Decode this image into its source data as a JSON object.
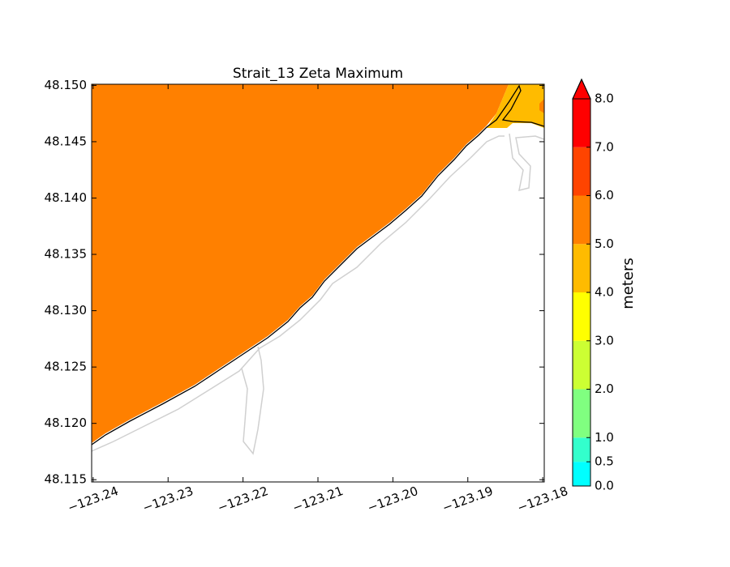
{
  "chart_data": {
    "type": "contour",
    "title": "Strait_13 Zeta Maximum",
    "xlim": [
      -123.2402,
      -123.1798
    ],
    "ylim": [
      48.1148,
      48.1501
    ],
    "xticks": [
      {
        "value": -123.24,
        "label": "−123.24"
      },
      {
        "value": -123.23,
        "label": "−123.23"
      },
      {
        "value": -123.22,
        "label": "−123.22"
      },
      {
        "value": -123.21,
        "label": "−123.21"
      },
      {
        "value": -123.2,
        "label": "−123.20"
      },
      {
        "value": -123.19,
        "label": "−123.19"
      },
      {
        "value": -123.18,
        "label": "−123.18"
      }
    ],
    "yticks": [
      48.115,
      {
        "value": 48.12,
        "label": "48.120"
      },
      48.125,
      {
        "value": 48.13,
        "label": "48.130"
      },
      48.135,
      {
        "value": 48.14,
        "label": "48.140"
      },
      48.145,
      {
        "value": 48.15,
        "label": "48.150"
      }
    ],
    "colorbar": {
      "label": "meters",
      "extend": "max",
      "levels": [
        {
          "value": 0,
          "label": "0.0"
        },
        0.5,
        {
          "value": 1,
          "label": "1.0"
        },
        {
          "value": 2,
          "label": "2.0"
        },
        {
          "value": 3,
          "label": "3.0"
        },
        {
          "value": 4,
          "label": "4.0"
        },
        {
          "value": 5,
          "label": "5.0"
        },
        {
          "value": 6,
          "label": "6.0"
        },
        {
          "value": 7,
          "label": "7.0"
        },
        {
          "value": 8,
          "label": "8.0"
        }
      ],
      "colors": [
        "#00ffff",
        "#33ffcc",
        "#80ff80",
        "#ccff33",
        "#ffff00",
        "#ffbb00",
        "#ff8000",
        "#ff4400",
        "#ff0000"
      ]
    }
  }
}
